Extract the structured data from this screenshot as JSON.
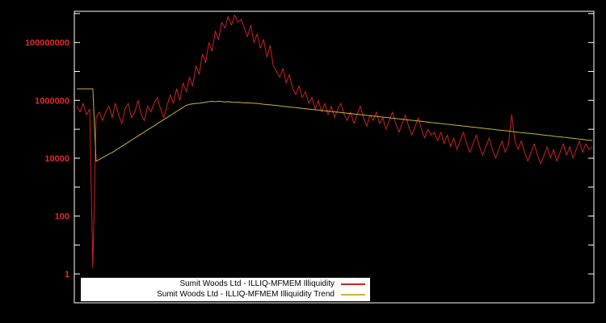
{
  "colors": {
    "background": "#000000",
    "plot_border": "#ffffff",
    "axis_label": "#e02a2a",
    "series_red": "#cc2222",
    "series_yellow": "#c8b43c",
    "legend_bg": "#ffffff",
    "legend_text": "#000000"
  },
  "chart_data": {
    "type": "line",
    "title": "",
    "xlabel": "",
    "ylabel": "",
    "y_scale": "log",
    "grid": false,
    "legend_position": "bottom-center-inside",
    "ylim": [
      0.1,
      1200000000
    ],
    "y_ticks": [
      {
        "value": 1,
        "label": "1"
      },
      {
        "value": 100,
        "label": "100"
      },
      {
        "value": 10000,
        "label": "10000"
      },
      {
        "value": 1000000,
        "label": "1000000"
      },
      {
        "value": 100000000,
        "label": "100000000"
      }
    ],
    "series": [
      {
        "name": "Sumit Woods Ltd - ILLIQ-MFMEM Illiquidity",
        "color_key": "series_red",
        "values": [
          631000,
          398000,
          794000,
          316000,
          501000,
          1.6,
          251000,
          398000,
          200000,
          398000,
          631000,
          251000,
          794000,
          316000,
          158000,
          501000,
          794000,
          251000,
          398000,
          1000000,
          316000,
          200000,
          631000,
          398000,
          794000,
          1260000,
          501000,
          251000,
          631000,
          1580000,
          794000,
          2510000,
          1000000,
          3980000,
          2000000,
          6310000,
          3160000,
          15800000,
          7940000,
          40000000,
          20000000,
          100000000,
          50000000,
          250000000,
          126000000,
          500000000,
          316000000,
          790000000,
          400000000,
          890000000,
          500000000,
          630000000,
          316000000,
          158000000,
          400000000,
          100000000,
          200000000,
          63000000,
          126000000,
          31600000,
          79000000,
          15800000,
          10000000,
          6310000,
          12600000,
          3980000,
          7940000,
          2510000,
          1580000,
          3160000,
          1260000,
          2000000,
          794000,
          1260000,
          501000,
          1000000,
          398000,
          794000,
          316000,
          631000,
          251000,
          501000,
          794000,
          316000,
          200000,
          398000,
          158000,
          316000,
          631000,
          251000,
          126000,
          316000,
          200000,
          398000,
          158000,
          251000,
          100000,
          200000,
          398000,
          158000,
          79400,
          158000,
          316000,
          126000,
          63100,
          126000,
          251000,
          100000,
          50100,
          100000,
          63100,
          79400,
          39800,
          79400,
          31600,
          63100,
          25100,
          50100,
          20000,
          39800,
          79400,
          31600,
          15800,
          31600,
          63100,
          25100,
          12600,
          25100,
          50100,
          20000,
          10000,
          20000,
          39800,
          15800,
          31600,
          316000,
          39800,
          20000,
          39800,
          15800,
          7900,
          15800,
          31600,
          12600,
          6310,
          12600,
          25100,
          10000,
          20000,
          7900,
          15800,
          31600,
          12600,
          25100,
          10000,
          20000,
          39800,
          15800,
          31600,
          20000,
          25100
        ]
      },
      {
        "name": "Sumit Woods Ltd - ILLIQ-MFMEM Illiquidity Trend",
        "color_key": "series_yellow",
        "values": [
          2510000,
          2510000,
          2510000,
          2510000,
          2510000,
          2510000,
          7900,
          9000,
          10500,
          12000,
          14000,
          15800,
          18600,
          21900,
          25800,
          30400,
          35800,
          42200,
          49700,
          58500,
          68900,
          81100,
          95500,
          112000,
          132000,
          156000,
          183000,
          216000,
          254000,
          299000,
          352000,
          415000,
          489000,
          575000,
          677000,
          724000,
          760000,
          780000,
          794000,
          830000,
          870000,
          900000,
          920000,
          900000,
          930000,
          910000,
          880000,
          900000,
          870000,
          850000,
          860000,
          840000,
          820000,
          830000,
          810000,
          800000,
          780000,
          760000,
          735000,
          715000,
          700000,
          685000,
          665000,
          645000,
          625000,
          610000,
          590000,
          575000,
          560000,
          545000,
          530000,
          515000,
          500000,
          487000,
          474000,
          461000,
          448000,
          436000,
          424000,
          412000,
          401000,
          390000,
          379000,
          369000,
          359000,
          349000,
          339000,
          330000,
          321000,
          312000,
          303000,
          295000,
          287000,
          279000,
          271000,
          264000,
          256000,
          249000,
          242000,
          236000,
          229000,
          223000,
          216000,
          210000,
          204000,
          199000,
          193000,
          188000,
          182000,
          177000,
          172000,
          167000,
          163000,
          158000,
          154000,
          149000,
          145000,
          141000,
          137000,
          133000,
          129000,
          126000,
          122000,
          119000,
          115000,
          112000,
          109000,
          106000,
          103000,
          100000,
          97000,
          94000,
          92000,
          89000,
          87000,
          84000,
          82000,
          79000,
          77000,
          75000,
          73000,
          71000,
          69000,
          67000,
          65000,
          63000,
          61000,
          60000,
          58000,
          56000,
          55000,
          53000,
          52000,
          50000,
          49000,
          47000,
          46000,
          45000,
          43000,
          42000,
          41000
        ]
      }
    ]
  }
}
